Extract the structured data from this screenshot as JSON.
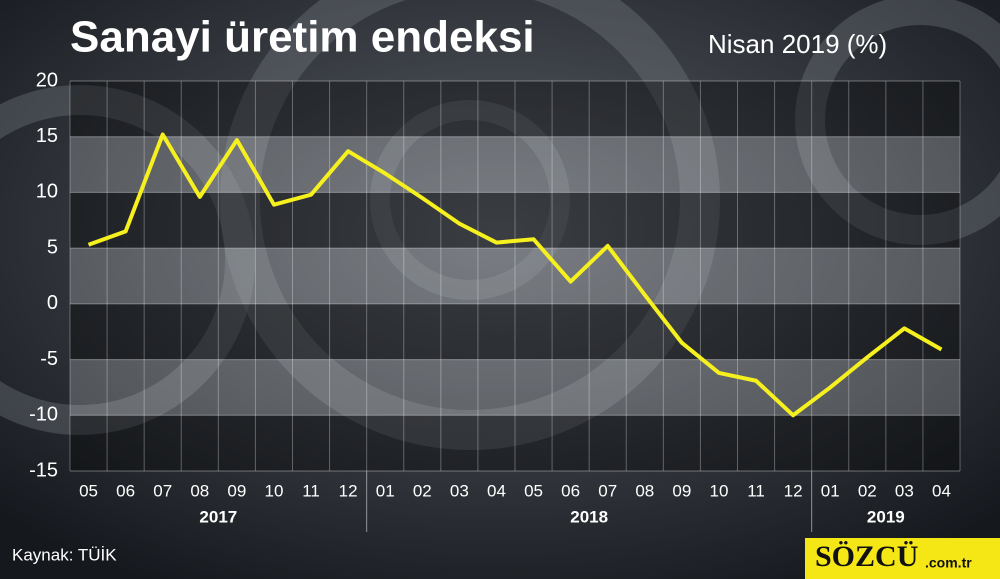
{
  "chart_data": {
    "type": "line",
    "title": "Sanayi üretim endeksi",
    "subtitle": "Nisan 2019 (%)",
    "categories": [
      "05",
      "06",
      "07",
      "08",
      "09",
      "10",
      "11",
      "12",
      "01",
      "02",
      "03",
      "04",
      "05",
      "06",
      "07",
      "08",
      "09",
      "10",
      "11",
      "12",
      "01",
      "02",
      "03",
      "04"
    ],
    "year_labels": [
      "2017",
      "2018",
      "2019"
    ],
    "series": [
      {
        "name": "Sanayi üretim endeksi",
        "color": "#f5f01e",
        "values": [
          5.3,
          6.5,
          15.2,
          9.6,
          14.7,
          8.9,
          9.8,
          13.7,
          11.7,
          9.5,
          7.2,
          5.5,
          5.8,
          2.0,
          5.2,
          0.8,
          -3.5,
          -6.2,
          -6.9,
          -10.0,
          -7.5,
          -4.8,
          -2.2,
          -4.1
        ]
      }
    ],
    "ylim": [
      -15,
      20
    ],
    "yticks": [
      -15,
      -10,
      -5,
      0,
      5,
      10,
      15,
      20
    ],
    "grid": true,
    "source": "Kaynak: TÜİK",
    "brand": {
      "name": "SÖZCÜ",
      "domain": ".com.tr"
    }
  }
}
